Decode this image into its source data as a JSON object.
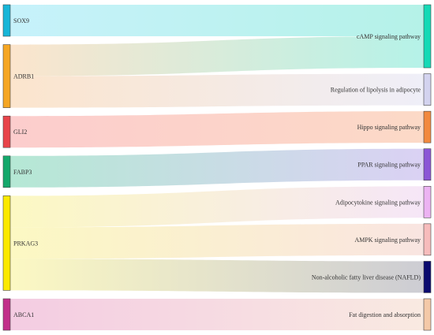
{
  "chart_data": {
    "type": "sankey",
    "source_nodes": [
      {
        "id": "SOX9",
        "label": "SOX9",
        "color": "#17b6d8"
      },
      {
        "id": "ADRB1",
        "label": "ADRB1",
        "color": "#f5a623"
      },
      {
        "id": "GLI2",
        "label": "GLI2",
        "color": "#e8444a"
      },
      {
        "id": "FABP3",
        "label": "FABP3",
        "color": "#14a86b"
      },
      {
        "id": "PRKAG3",
        "label": "PRKAG3",
        "color": "#fbe900"
      },
      {
        "id": "ABCA1",
        "label": "ABCA1",
        "color": "#c2308a"
      }
    ],
    "target_nodes": [
      {
        "id": "cAMP",
        "label": "cAMP signaling pathway",
        "color": "#14d9b6"
      },
      {
        "id": "lipolysis",
        "label": "Regulation of lipolysis in adipocyte",
        "color": "#d3d3ef"
      },
      {
        "id": "Hippo",
        "label": "Hippo signaling pathway",
        "color": "#f2893e"
      },
      {
        "id": "PPAR",
        "label": "PPAR signaling pathway",
        "color": "#8b55d6"
      },
      {
        "id": "adipocytokine",
        "label": "Adipocytokine signaling pathway",
        "color": "#ecb3f2"
      },
      {
        "id": "AMPK",
        "label": "AMPK signaling pathway",
        "color": "#f7bcbc"
      },
      {
        "id": "NAFLD",
        "label": "Non-alcoholic fatty liver disease (NAFLD)",
        "color": "#0a0a6e"
      },
      {
        "id": "fat",
        "label": "Fat digestion and absorption",
        "color": "#f4c9a8"
      }
    ],
    "links": [
      {
        "source": "SOX9",
        "target": "cAMP",
        "value": 1,
        "from_color": "#bdeffa",
        "to_color": "#a8f0e4"
      },
      {
        "source": "ADRB1",
        "target": "cAMP",
        "value": 1,
        "from_color": "#fbe0c4",
        "to_color": "#a8f0e4"
      },
      {
        "source": "ADRB1",
        "target": "lipolysis",
        "value": 1,
        "from_color": "#fbe0c4",
        "to_color": "#ececf7"
      },
      {
        "source": "GLI2",
        "target": "Hippo",
        "value": 1,
        "from_color": "#fbc4c4",
        "to_color": "#fbd3bd"
      },
      {
        "source": "FABP3",
        "target": "PPAR",
        "value": 1,
        "from_color": "#a8e4cd",
        "to_color": "#d4c9f2"
      },
      {
        "source": "PRKAG3",
        "target": "adipocytokine",
        "value": 1,
        "from_color": "#fbf7b8",
        "to_color": "#f4e2f6"
      },
      {
        "source": "PRKAG3",
        "target": "AMPK",
        "value": 1,
        "from_color": "#fbf7b8",
        "to_color": "#f8e0dc"
      },
      {
        "source": "PRKAG3",
        "target": "NAFLD",
        "value": 1,
        "from_color": "#fbf7b8",
        "to_color": "#c4c4cc"
      },
      {
        "source": "ABCA1",
        "target": "fat",
        "value": 1,
        "from_color": "#f2c3dd",
        "to_color": "#f8e6dc"
      }
    ]
  }
}
